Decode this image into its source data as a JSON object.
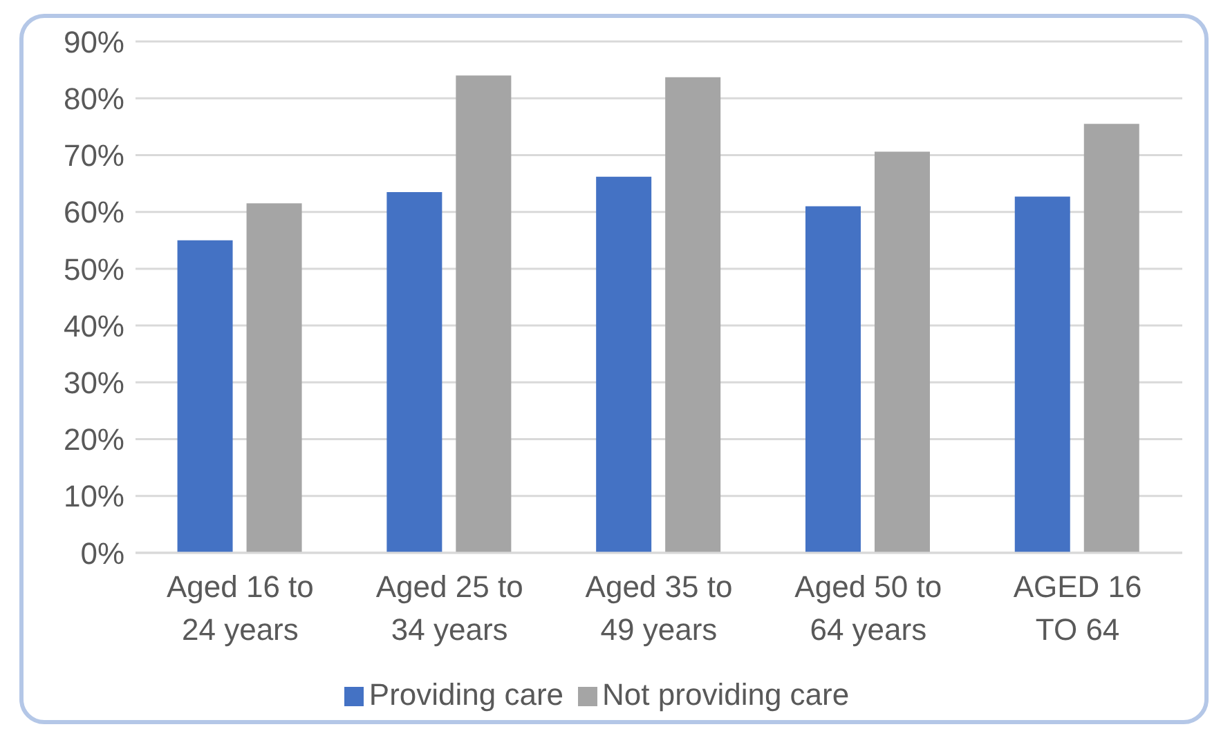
{
  "chart_data": {
    "type": "bar",
    "categories": [
      "Aged 16 to 24 years",
      "Aged 25 to 34 years",
      "Aged 35 to 49 years",
      "Aged 50 to 64 years",
      "AGED 16 TO 64"
    ],
    "series": [
      {
        "name": "Providing care",
        "color": "#4472c4",
        "values": [
          55,
          63.5,
          66.2,
          61,
          62.7
        ]
      },
      {
        "name": "Not providing care",
        "color": "#a5a5a5",
        "values": [
          61.5,
          84,
          83.7,
          70.6,
          75.5
        ]
      }
    ],
    "ylim": [
      0,
      90
    ],
    "yticks": [
      {
        "value": 0,
        "label": "0%"
      },
      {
        "value": 10,
        "label": "10%"
      },
      {
        "value": 20,
        "label": "20%"
      },
      {
        "value": 30,
        "label": "30%"
      },
      {
        "value": 40,
        "label": "40%"
      },
      {
        "value": 50,
        "label": "50%"
      },
      {
        "value": 60,
        "label": "60%"
      },
      {
        "value": 70,
        "label": "70%"
      },
      {
        "value": 80,
        "label": "80%"
      },
      {
        "value": 90,
        "label": "90%"
      }
    ],
    "grid": "y",
    "legend": "bottom"
  }
}
